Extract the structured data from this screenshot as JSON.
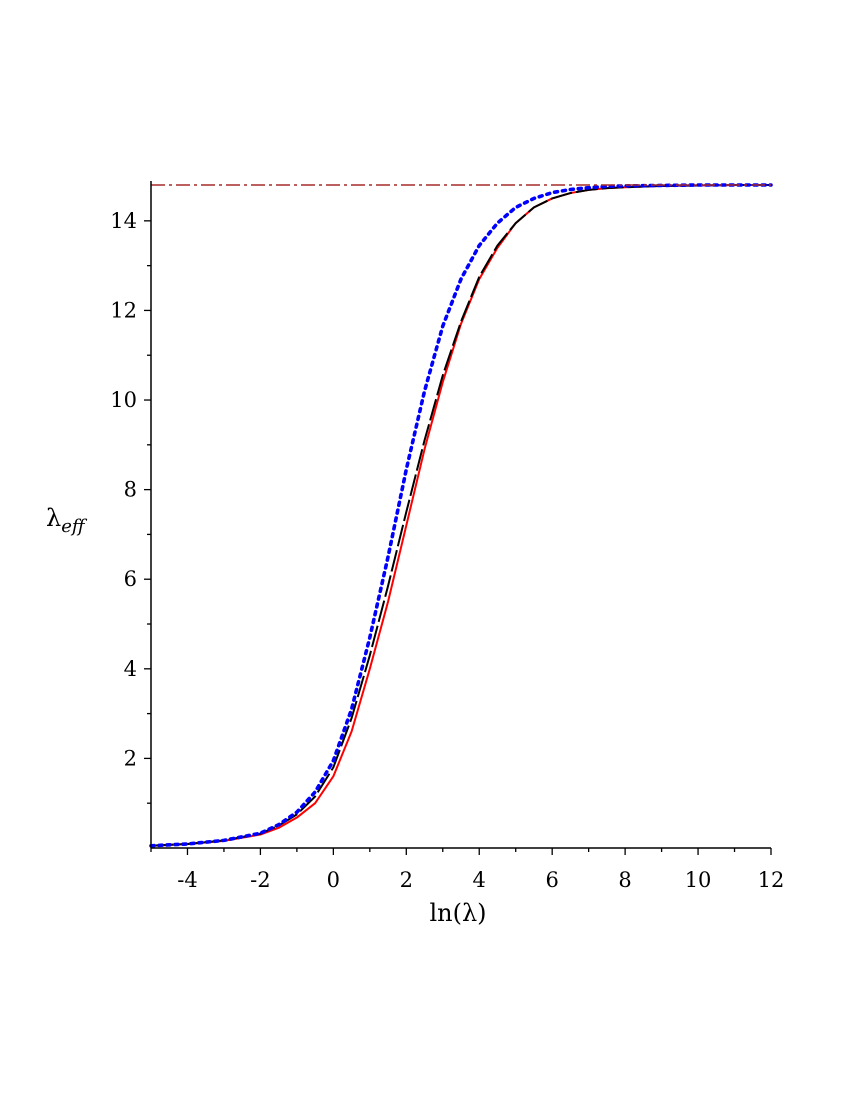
{
  "chart_data": {
    "type": "line",
    "title": "",
    "xlabel": "ln(λ)",
    "ylabel_main": "λ",
    "ylabel_sub": "eff",
    "xlim": [
      -5,
      12
    ],
    "ylim": [
      0,
      14.8
    ],
    "xticks": [
      -4,
      -2,
      0,
      2,
      4,
      6,
      8,
      10,
      12
    ],
    "yticks": [
      2,
      4,
      6,
      8,
      10,
      12,
      14
    ],
    "grid": false,
    "asymptote": {
      "y": 14.8,
      "color": "#a52a2a",
      "style": "dash-dot"
    },
    "series": [
      {
        "color": "#ff0000",
        "style": "solid",
        "x": [
          -5,
          -4,
          -3,
          -2,
          -1.5,
          -1,
          -0.5,
          0,
          0.5,
          1,
          1.5,
          2,
          2.5,
          3,
          3.5,
          4,
          4.5,
          5,
          5.5,
          6,
          6.5,
          7,
          7.5,
          8,
          9,
          10,
          11,
          12
        ],
        "y": [
          0.05,
          0.09,
          0.16,
          0.3,
          0.45,
          0.68,
          1.0,
          1.6,
          2.6,
          4.0,
          5.5,
          7.2,
          8.9,
          10.4,
          11.7,
          12.7,
          13.4,
          13.95,
          14.3,
          14.5,
          14.62,
          14.69,
          14.73,
          14.75,
          14.78,
          14.79,
          14.8,
          14.8
        ]
      },
      {
        "color": "#000000",
        "style": "dashed",
        "x": [
          -5,
          -4,
          -3,
          -2,
          -1.5,
          -1,
          -0.5,
          0,
          0.5,
          1,
          1.5,
          2,
          2.5,
          3,
          3.5,
          4,
          4.5,
          5,
          5.5,
          6,
          6.5,
          7,
          7.5,
          8,
          9,
          10,
          11,
          12
        ],
        "y": [
          0.05,
          0.09,
          0.17,
          0.32,
          0.5,
          0.75,
          1.15,
          1.8,
          2.9,
          4.3,
          5.85,
          7.5,
          9.1,
          10.55,
          11.75,
          12.75,
          13.45,
          13.95,
          14.3,
          14.5,
          14.62,
          14.69,
          14.73,
          14.75,
          14.78,
          14.79,
          14.8,
          14.8
        ]
      },
      {
        "color": "#0000ff",
        "style": "dotted",
        "x": [
          -5,
          -4,
          -3,
          -2,
          -1.5,
          -1,
          -0.5,
          0,
          0.5,
          1,
          1.5,
          2,
          2.5,
          3,
          3.5,
          4,
          4.5,
          5,
          5.5,
          6,
          6.5,
          7,
          7.5,
          8,
          9,
          10,
          11,
          12
        ],
        "y": [
          0.05,
          0.09,
          0.17,
          0.33,
          0.52,
          0.8,
          1.25,
          1.95,
          3.1,
          4.7,
          6.5,
          8.45,
          10.2,
          11.65,
          12.7,
          13.45,
          13.95,
          14.3,
          14.5,
          14.63,
          14.7,
          14.74,
          14.77,
          14.78,
          14.79,
          14.8,
          14.8,
          14.8
        ]
      }
    ]
  }
}
